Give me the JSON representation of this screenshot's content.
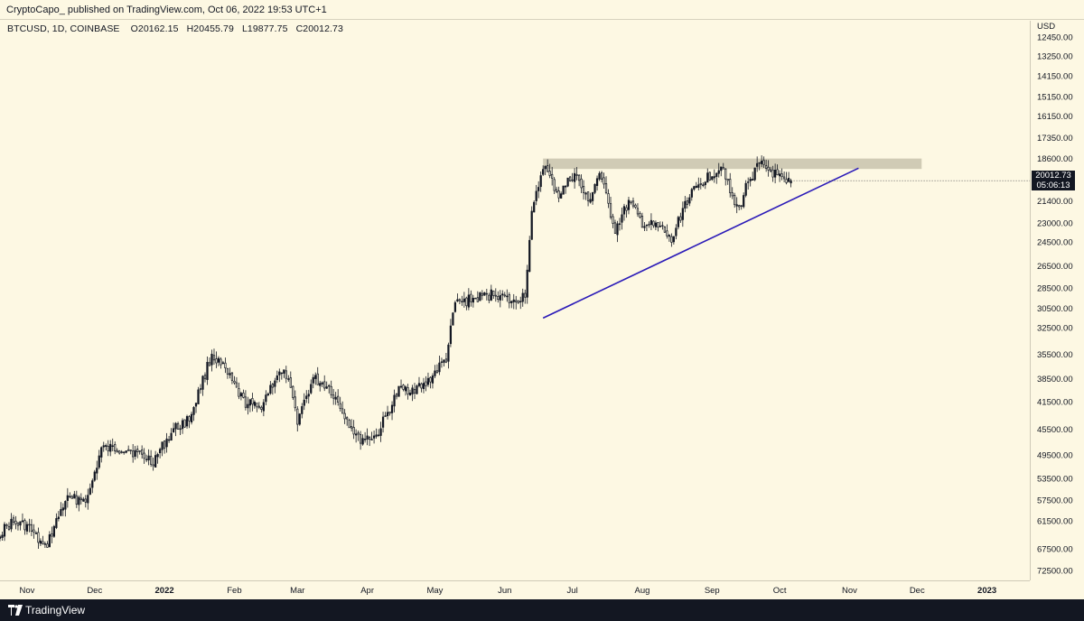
{
  "header": {
    "published_text": "CryptoCapo_ published on TradingView.com, Oct 06, 2022 19:53 UTC+1"
  },
  "symbol_info": {
    "symbol": "BTCUSD, 1D, COINBASE",
    "open": "O20162.15",
    "high": "H20455.79",
    "low": "L19877.75",
    "close": "C20012.73"
  },
  "price_axis": {
    "currency": "USD",
    "current_price": "20012.73",
    "countdown": "05:06:13"
  },
  "footer": {
    "brand": "TradingView"
  },
  "colors": {
    "background": "#fdf8e3",
    "candle": "#131722",
    "trendline": "#2b1bb8",
    "resistance_zone": "#c8c3ad",
    "footer_bg": "#131722"
  },
  "chart_data": {
    "type": "candlestick",
    "title": "BTCUSD, 1D, COINBASE",
    "ylabel": "USD",
    "y_scale": "log-inverted",
    "ylim": [
      12450,
      72500
    ],
    "y_ticks": [
      "12450.00",
      "13250.00",
      "14150.00",
      "15150.00",
      "16150.00",
      "17350.00",
      "18600.00",
      "20000.00",
      "21400.00",
      "23000.00",
      "24500.00",
      "26500.00",
      "28500.00",
      "30500.00",
      "32500.00",
      "35500.00",
      "38500.00",
      "41500.00",
      "45500.00",
      "49500.00",
      "53500.00",
      "57500.00",
      "61500.00",
      "67500.00",
      "72500.00"
    ],
    "x_ticks": [
      "Nov",
      "Dec",
      "2022",
      "Feb",
      "Mar",
      "Apr",
      "May",
      "Jun",
      "Jul",
      "Aug",
      "Sep",
      "Oct",
      "Nov",
      "Dec",
      "2023"
    ],
    "x_range": [
      "2021-10-20",
      "2023-01-20"
    ],
    "price_path": [
      [
        "2021-10-20",
        64000
      ],
      [
        "2021-10-25",
        62000
      ],
      [
        "2021-11-01",
        62500
      ],
      [
        "2021-11-09",
        67500
      ],
      [
        "2021-11-18",
        57500
      ],
      [
        "2021-11-28",
        57000
      ],
      [
        "2021-12-04",
        48500
      ],
      [
        "2021-12-15",
        48500
      ],
      [
        "2021-12-27",
        50500
      ],
      [
        "2022-01-05",
        45500
      ],
      [
        "2022-01-12",
        44000
      ],
      [
        "2022-01-22",
        35500
      ],
      [
        "2022-01-28",
        37500
      ],
      [
        "2022-02-05",
        41500
      ],
      [
        "2022-02-12",
        42500
      ],
      [
        "2022-02-20",
        38000
      ],
      [
        "2022-02-24",
        38000
      ],
      [
        "2022-03-01",
        44000
      ],
      [
        "2022-03-08",
        38500
      ],
      [
        "2022-03-15",
        39500
      ],
      [
        "2022-03-28",
        47000
      ],
      [
        "2022-04-05",
        46500
      ],
      [
        "2022-04-15",
        40000
      ],
      [
        "2022-04-26",
        39500
      ],
      [
        "2022-05-06",
        36000
      ],
      [
        "2022-05-10",
        30000
      ],
      [
        "2022-05-20",
        29500
      ],
      [
        "2022-05-28",
        29000
      ],
      [
        "2022-06-05",
        30000
      ],
      [
        "2022-06-10",
        29000
      ],
      [
        "2022-06-13",
        22500
      ],
      [
        "2022-06-18",
        19000
      ],
      [
        "2022-06-25",
        21000
      ],
      [
        "2022-07-02",
        19500
      ],
      [
        "2022-07-08",
        21500
      ],
      [
        "2022-07-13",
        19500
      ],
      [
        "2022-07-20",
        23500
      ],
      [
        "2022-07-26",
        21500
      ],
      [
        "2022-08-01",
        23000
      ],
      [
        "2022-08-10",
        23500
      ],
      [
        "2022-08-14",
        24500
      ],
      [
        "2022-08-20",
        21500
      ],
      [
        "2022-08-28",
        20000
      ],
      [
        "2022-09-06",
        19000
      ],
      [
        "2022-09-10",
        21400
      ],
      [
        "2022-09-13",
        22000
      ],
      [
        "2022-09-17",
        20000
      ],
      [
        "2022-09-22",
        19000
      ],
      [
        "2022-09-28",
        19500
      ],
      [
        "2022-10-04",
        20300
      ],
      [
        "2022-10-06",
        20012.73
      ]
    ],
    "annotations": {
      "resistance_zone": {
        "start": "2022-06-18",
        "end": "2022-12-03",
        "price_low": 19250,
        "price_high": 18600
      },
      "trendline": {
        "from": [
          "2022-06-18",
          31500
        ],
        "to": [
          "2022-11-05",
          19200
        ]
      }
    }
  }
}
